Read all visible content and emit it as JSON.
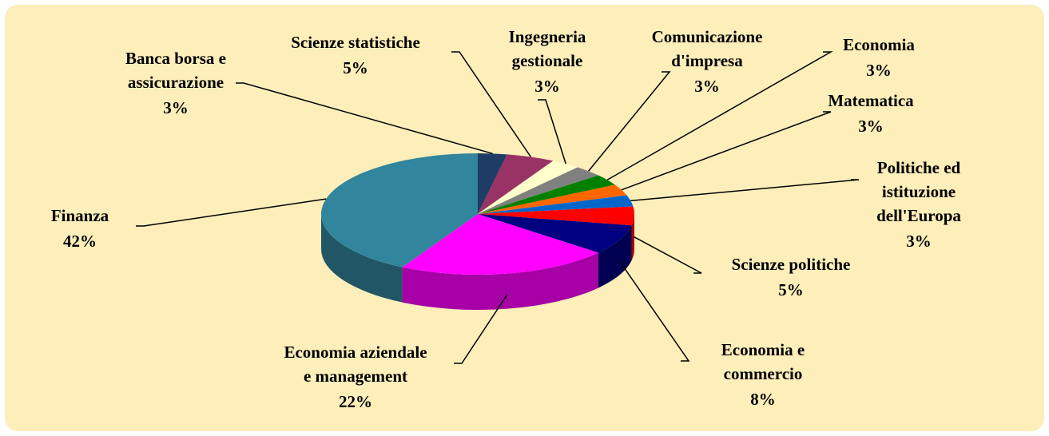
{
  "chart_data": {
    "type": "pie3d",
    "categories": [
      "Banca borsa e\nassicurazione",
      "Scienze statistiche",
      "Ingegneria\ngestionale",
      "Comunicazione\nd'impresa",
      "Economia",
      "Matematica",
      "Politiche ed\nistituzione\ndell'Europa",
      "Scienze politiche",
      "Economia e\ncommercio",
      "Economia aziendale\ne management",
      "Finanza"
    ],
    "values": [
      3,
      5,
      3,
      3,
      3,
      3,
      3,
      5,
      8,
      22,
      42
    ],
    "value_labels": [
      "3%",
      "5%",
      "3%",
      "3%",
      "3%",
      "3%",
      "3%",
      "5%",
      "8%",
      "22%",
      "42%"
    ],
    "colors": [
      "#1f3c64",
      "#993366",
      "#ffffcc",
      "#808080",
      "#008000",
      "#ff6600",
      "#0066cc",
      "#ff0000",
      "#000080",
      "#ff00ff",
      "#31859c"
    ]
  }
}
